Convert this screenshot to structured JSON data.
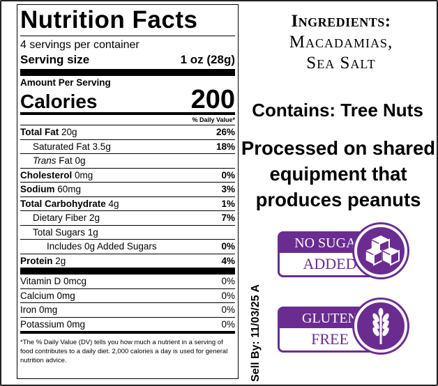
{
  "nutrition": {
    "title": "Nutrition Facts",
    "servings": "4 servings per container",
    "serving_size_label": "Serving size",
    "serving_size_value": "1 oz (28g)",
    "amount_per_serving": "Amount Per Serving",
    "calories_label": "Calories",
    "calories_value": "200",
    "dv_header": "% Daily Value*",
    "rows": [
      {
        "name": "Total Fat",
        "amount": " 20g",
        "dv": "26%"
      },
      {
        "name": "Saturated Fat 3.5g",
        "amount": "",
        "dv": "18%"
      },
      {
        "name": "Trans",
        "amount": " Fat 0g",
        "dv": ""
      },
      {
        "name": "Cholesterol",
        "amount": " 0mg",
        "dv": "0%"
      },
      {
        "name": "Sodium",
        "amount": " 60mg",
        "dv": "3%"
      },
      {
        "name": "Total Carbohydrate",
        "amount": " 4g",
        "dv": "1%"
      },
      {
        "name": "Dietary Fiber 2g",
        "amount": "",
        "dv": "7%"
      },
      {
        "name": "Total Sugars 1g",
        "amount": "",
        "dv": ""
      },
      {
        "name": "Includes 0g Added Sugars",
        "amount": "",
        "dv": "0%"
      },
      {
        "name": "Protein",
        "amount": " 2g",
        "dv": "4%"
      }
    ],
    "vitamins": [
      {
        "name": "Vitamin D 0mcg",
        "dv": "0%"
      },
      {
        "name": "Calcium 0mg",
        "dv": "0%"
      },
      {
        "name": "Iron 0mg",
        "dv": "0%"
      },
      {
        "name": "Potassium 0mg",
        "dv": "0%"
      }
    ],
    "footnote": "*The % Daily Value (DV) tells you how much a nutrient in a serving of food contributes to a daily diet. 2,000 calories a day is used for general nutrition advice."
  },
  "ingredients": {
    "heading": "Ingredients:",
    "line1": "Macadamias,",
    "line2": "Sea Salt"
  },
  "contains": "Contains: Tree Nuts",
  "processed": "Processed on shared equipment that produces peanuts",
  "sell_by": "Sell By: 11/03/25 A",
  "badges": {
    "no_sugar_top": "NO SUGAR",
    "no_sugar_bottom": "ADDED",
    "gluten_top": "GLUTEN",
    "gluten_bottom": "FREE"
  },
  "colors": {
    "badge_purple": "#6a2c91",
    "text": "#000000"
  }
}
